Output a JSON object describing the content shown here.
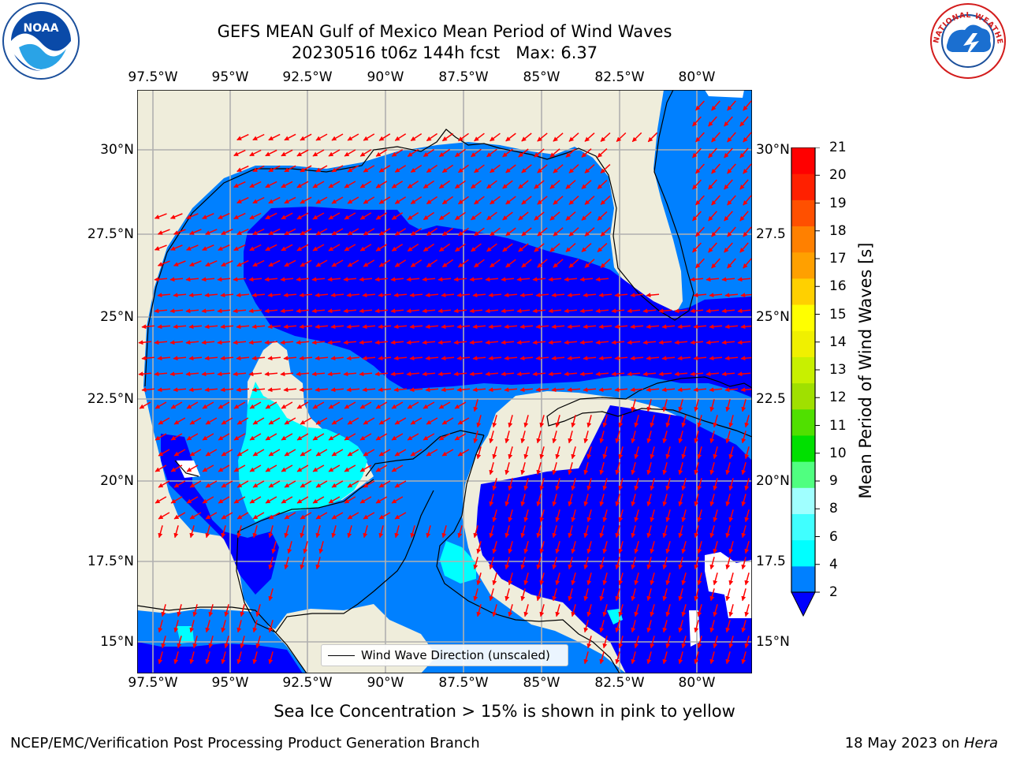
{
  "header": {
    "title_line1": "GEFS MEAN Gulf of Mexico Mean Period of Wind Waves",
    "title_line2": "20230516 t06z 144h fcst   Max: 6.37"
  },
  "map": {
    "lon_ticks": [
      "97.5°W",
      "95°W",
      "92.5°W",
      "90°W",
      "87.5°W",
      "85°W",
      "82.5°W",
      "80°W"
    ],
    "lat_ticks": [
      "30°N",
      "27.5°N",
      "25°N",
      "22.5°N",
      "20°N",
      "17.5°N",
      "15°N"
    ],
    "lat_ticks_right": [
      "30°N",
      "27.5",
      "25°N",
      "22.5",
      "20°N",
      "17.5",
      "15°N"
    ],
    "land_color": "#efeddb",
    "ocean_colors": {
      "2_4": "#0080ff",
      "0_2": "#0000ff",
      "4_6": "#00ffff"
    },
    "arrow_color": "#ff0000"
  },
  "legend": {
    "label": "Wind Wave Direction (unscaled)"
  },
  "colorbar": {
    "label": "Mean Period of Wind Waves [s]",
    "ticks": [
      "2",
      "4",
      "6",
      "8",
      "9",
      "10",
      "11",
      "12",
      "13",
      "14",
      "15",
      "16",
      "17",
      "18",
      "19",
      "20",
      "21"
    ],
    "colors": [
      "#0080ff",
      "#00ffff",
      "#40ffff",
      "#a0ffff",
      "#50ff80",
      "#00e000",
      "#50e000",
      "#a0e000",
      "#c8f000",
      "#f0f000",
      "#ffff00",
      "#ffd000",
      "#ffa000",
      "#ff8000",
      "#ff5000",
      "#ff2000",
      "#ff0000"
    ],
    "under_color": "#0000ff"
  },
  "footer": {
    "sea_ice_note": "Sea Ice Concentration > 15% is shown in pink to yellow",
    "credit": "NCEP/EMC/Verification Post Processing Product Generation Branch",
    "date": "18 May 2023 on ",
    "host": "Hera"
  },
  "logos": {
    "noaa_text": "NOAA",
    "nws_text": "NATIONAL WEATHER SERVICE"
  }
}
